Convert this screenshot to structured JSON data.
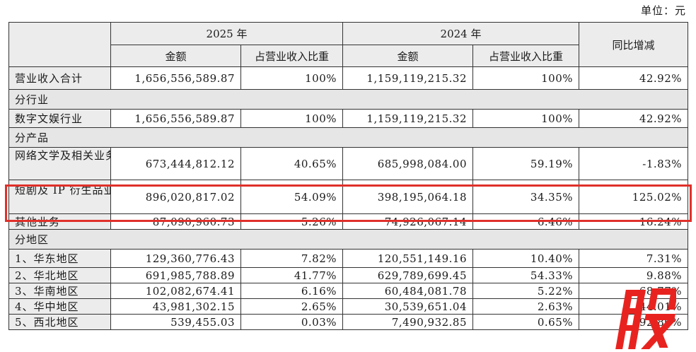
{
  "unit_label": "单位：元",
  "header": {
    "year_2025": "2025 年",
    "year_2024": "2024 年",
    "yoy": "同比增减",
    "amount": "金额",
    "ratio": "占营业收入比重"
  },
  "total_row": {
    "label": "营业收入合计",
    "a2025": "1,656,556,589.87",
    "r2025": "100%",
    "a2024": "1,159,119,215.32",
    "r2024": "100%",
    "yoy": "42.92%"
  },
  "sections": {
    "industry": "分行业",
    "product": "分产品",
    "region": "分地区"
  },
  "industry_row": {
    "label": "数字文娱行业",
    "a2025": "1,656,556,589.87",
    "r2025": "100%",
    "a2024": "1,159,119,215.32",
    "r2024": "100%",
    "yoy": "42.92%"
  },
  "product_rows": [
    {
      "label": "网络文学及相关业务",
      "a2025": "673,444,812.12",
      "r2025": "40.65%",
      "a2024": "685,998,084.00",
      "r2024": "59.19%",
      "yoy": "-1.83%"
    },
    {
      "label": "短剧及 IP 衍生品业务",
      "a2025": "896,020,817.02",
      "r2025": "54.09%",
      "a2024": "398,195,064.18",
      "r2024": "34.35%",
      "yoy": "125.02%"
    },
    {
      "label": "其他业务",
      "a2025": "87,090,960.73",
      "r2025": "5.26%",
      "a2024": "74,926,067.14",
      "r2024": "6.46%",
      "yoy": "16.24%"
    }
  ],
  "region_rows": [
    {
      "label": "1、华东地区",
      "a2025": "129,360,776.43",
      "r2025": "7.82%",
      "a2024": "120,551,149.16",
      "r2024": "10.40%",
      "yoy": "7.31%"
    },
    {
      "label": "2、华北地区",
      "a2025": "691,985,788.89",
      "r2025": "41.77%",
      "a2024": "629,789,699.45",
      "r2024": "54.33%",
      "yoy": "9.88%"
    },
    {
      "label": "3、华南地区",
      "a2025": "102,082,674.41",
      "r2025": "6.16%",
      "a2024": "60,484,081.78",
      "r2024": "5.22%",
      "yoy": "68.77%"
    },
    {
      "label": "4、华中地区",
      "a2025": "43,981,302.15",
      "r2025": "2.65%",
      "a2024": "30,539,651.04",
      "r2024": "2.63%",
      "yoy": "44.01%"
    },
    {
      "label": "5、西北地区",
      "a2025": "539,455.03",
      "r2025": "0.03%",
      "a2024": "7,490,932.85",
      "r2024": "0.65%",
      "yoy": "-92.80%"
    }
  ],
  "watermark_text": "股",
  "colors": {
    "highlight": "#e0302a",
    "watermark": "#e8231f",
    "header_bg": "#ececec"
  }
}
